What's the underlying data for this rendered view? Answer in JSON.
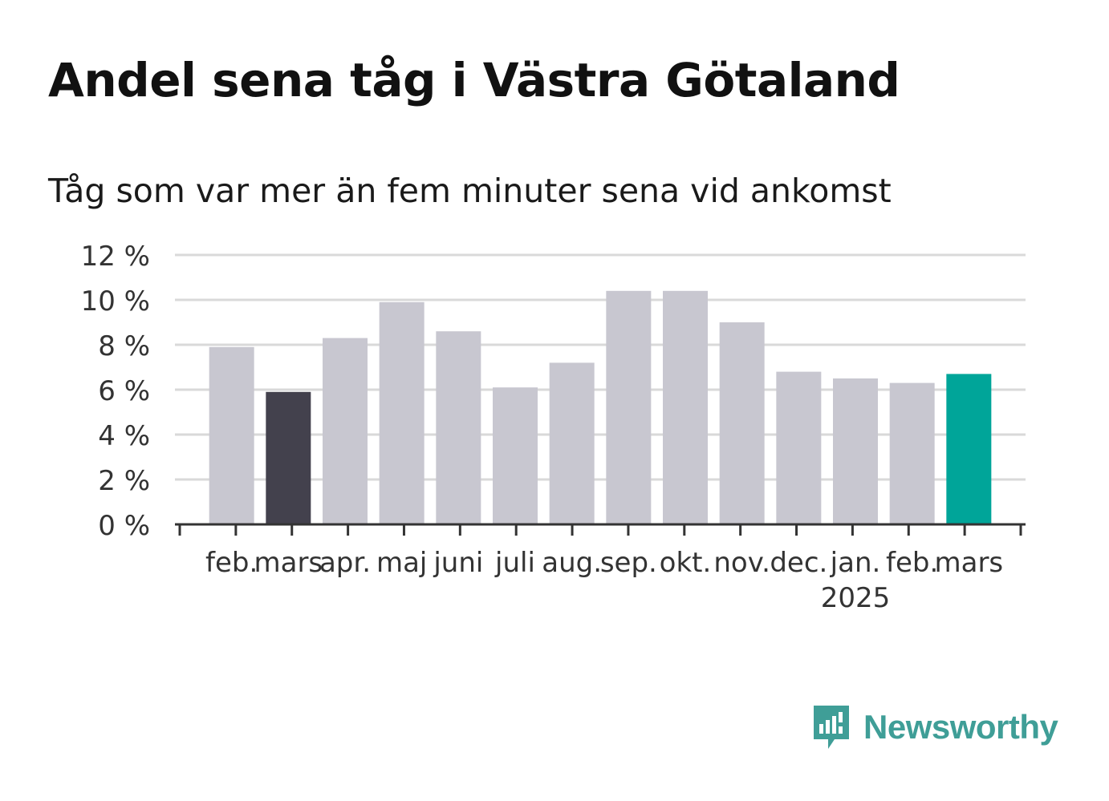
{
  "title": "Andel sena tåg i Västra Götaland",
  "subtitle": "Tåg som var mer än fem minuter sena vid ankomst",
  "brand": {
    "name": "Newsworthy",
    "icon": "newsworthy-logo-icon",
    "color": "#3f9e97"
  },
  "colors": {
    "default": "#c8c7d0",
    "previous_year": "#43414d",
    "latest": "#00a599",
    "grid": "#d9d9d9",
    "axis": "#333333"
  },
  "chart_data": {
    "type": "bar",
    "categories": [
      "feb.",
      "mars",
      "apr.",
      "maj",
      "juni",
      "juli",
      "aug.",
      "sep.",
      "okt.",
      "nov.",
      "dec.",
      "jan.",
      "feb.",
      "mars"
    ],
    "year_label": {
      "category_index": 11,
      "text": "2025"
    },
    "values": [
      7.9,
      5.9,
      8.3,
      9.9,
      8.6,
      6.1,
      7.2,
      10.4,
      10.4,
      9.0,
      6.8,
      6.5,
      6.3,
      6.7
    ],
    "highlight": {
      "1": "previous_year",
      "13": "latest"
    },
    "yticks": [
      "0 %",
      "2 %",
      "4 %",
      "6 %",
      "8 %",
      "10 %",
      "12 %"
    ],
    "ylim": [
      0,
      12
    ],
    "grid": true,
    "xlabel": "",
    "ylabel": ""
  }
}
